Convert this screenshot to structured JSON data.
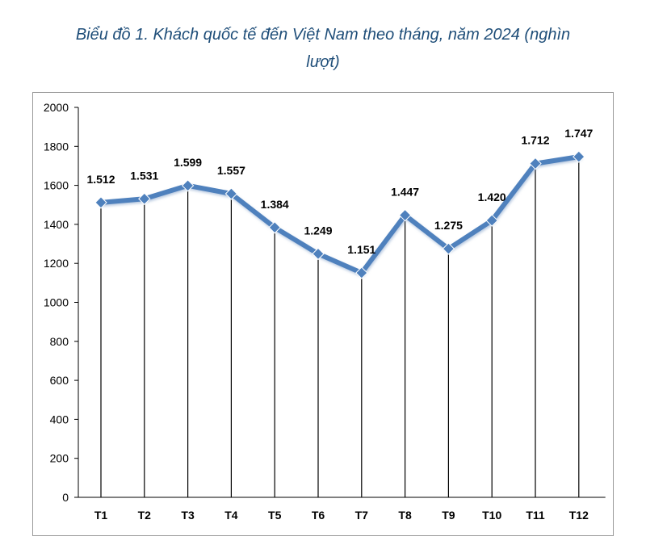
{
  "chart_data": {
    "type": "line",
    "title": "Biểu đồ 1. Khách quốc tế đến Việt Nam theo tháng, năm 2024 (nghìn lượt)",
    "title_lines": [
      "Biểu đồ 1. Khách quốc tế đến Việt Nam theo tháng, năm 2024 (nghìn",
      "lượt)"
    ],
    "categories": [
      "T1",
      "T2",
      "T3",
      "T4",
      "T5",
      "T6",
      "T7",
      "T8",
      "T9",
      "T10",
      "T11",
      "T12"
    ],
    "values": [
      1512,
      1531,
      1599,
      1557,
      1384,
      1249,
      1151,
      1447,
      1275,
      1420,
      1712,
      1747
    ],
    "data_labels": [
      "1.512",
      "1.531",
      "1.599",
      "1.557",
      "1.384",
      "1.249",
      "1.151",
      "1.447",
      "1.275",
      "1.420",
      "1.712",
      "1.747"
    ],
    "yticks": [
      0,
      200,
      400,
      600,
      800,
      1000,
      1200,
      1400,
      1600,
      1800,
      2000
    ],
    "ylim": [
      0,
      2000
    ],
    "xlabel": "",
    "ylabel": "",
    "grid": false,
    "drop_lines": true,
    "line_color": "#4f81bd",
    "marker": "diamond"
  }
}
